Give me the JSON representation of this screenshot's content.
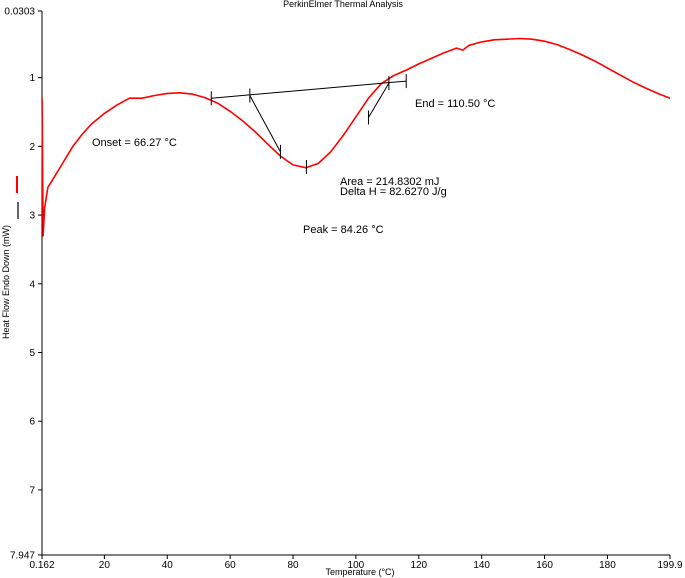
{
  "chart_data": {
    "type": "line",
    "title": "PerkinElmer Thermal Analysis",
    "xlabel": "Temperature (°C)",
    "ylabel": "Heat Flow Endo Down (mW)",
    "xlim": [
      0.162,
      199.9
    ],
    "ylim": [
      0.0303,
      7.947
    ],
    "y_inverted": true,
    "grid": false,
    "x_ticks": [
      0.162,
      20,
      40,
      60,
      80,
      100,
      120,
      140,
      160,
      180,
      199.9
    ],
    "x_tick_labels": [
      "0.162",
      "20",
      "40",
      "60",
      "80",
      "100",
      "120",
      "140",
      "160",
      "180",
      "199.9"
    ],
    "y_ticks": [
      0.0303,
      1,
      2,
      3,
      4,
      5,
      6,
      7,
      7.947
    ],
    "y_tick_labels": [
      "0.0303",
      "1",
      "2",
      "3",
      "4",
      "5",
      "6",
      "7",
      "7.947"
    ],
    "series": [
      {
        "color": "#ff0000",
        "x": [
          0.2,
          0.5,
          1,
          2,
          4,
          6,
          8,
          10,
          13,
          16,
          20,
          24,
          28,
          32,
          36,
          40,
          44,
          48,
          52,
          56,
          60,
          64,
          68,
          72,
          76,
          80,
          84,
          88,
          92,
          96,
          100,
          104,
          108,
          112,
          116,
          120,
          124,
          128,
          132,
          134,
          136,
          140,
          144,
          148,
          152,
          156,
          160,
          164,
          168,
          172,
          176,
          180,
          184,
          188,
          192,
          196,
          199.9
        ],
        "y": [
          1.3,
          3.3,
          2.9,
          2.6,
          2.45,
          2.3,
          2.15,
          2.0,
          1.82,
          1.67,
          1.52,
          1.4,
          1.3,
          1.3,
          1.26,
          1.23,
          1.22,
          1.24,
          1.29,
          1.37,
          1.49,
          1.63,
          1.79,
          1.97,
          2.14,
          2.27,
          2.31,
          2.25,
          2.08,
          1.84,
          1.57,
          1.3,
          1.09,
          0.97,
          0.89,
          0.8,
          0.72,
          0.64,
          0.57,
          0.6,
          0.53,
          0.48,
          0.45,
          0.44,
          0.43,
          0.44,
          0.47,
          0.52,
          0.59,
          0.67,
          0.76,
          0.86,
          0.96,
          1.06,
          1.15,
          1.23,
          1.3
        ]
      }
    ],
    "baseline": {
      "x": [
        54,
        116
      ],
      "y": [
        1.3,
        1.05
      ]
    },
    "tick_marks": [
      {
        "x": 54,
        "y": 1.3
      },
      {
        "x": 66.27,
        "y": 1.26
      },
      {
        "x": 76,
        "y": 2.08
      },
      {
        "x": 84.26,
        "y": 2.3
      },
      {
        "x": 104,
        "y": 1.58
      },
      {
        "x": 110.5,
        "y": 1.08
      },
      {
        "x": 116,
        "y": 1.05
      }
    ],
    "tangent_lines": [
      {
        "x": [
          66.27,
          76
        ],
        "y": [
          1.26,
          2.08
        ]
      },
      {
        "x": [
          104,
          110.5
        ],
        "y": [
          1.58,
          1.08
        ]
      }
    ],
    "annotations": {
      "onset": "Onset = 66.27 °C",
      "end": "End = 110.50 °C",
      "area": "Area = 214.8302 mJ",
      "delta_h": "Delta H = 82.6270 J/g",
      "peak": "Peak = 84.26 °C"
    }
  }
}
